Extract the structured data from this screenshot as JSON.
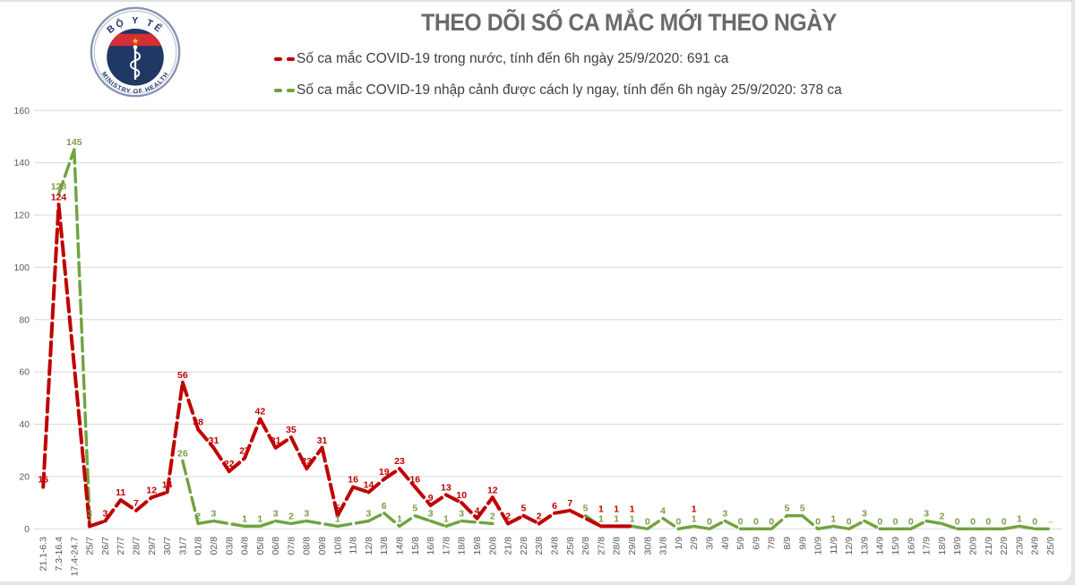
{
  "page": {
    "background": "#e6e6e6",
    "card_background": "#ffffff"
  },
  "logo": {
    "top_text": "BỘ Y TẾ",
    "bottom_text": "MINISTRY OF HEALTH",
    "ring_color": "#8a94b5",
    "navy": "#1f3864",
    "band_red": "#d62e33",
    "star_yellow": "#ffcf24",
    "text_color": "#1f3864"
  },
  "header": {
    "title": "THEO DÕI SỐ CA MẮC MỚI THEO NGÀY",
    "title_color": "#6a6a6a",
    "legend_text_color": "#3f3f3f",
    "legend": [
      {
        "id": "domestic",
        "label": "Số ca mắc COVID-19 trong nước, tính đến 6h ngày 25/9/2020: 691 ca",
        "color": "#c00000"
      },
      {
        "id": "imported",
        "label": "Số ca mắc COVID-19 nhập cảnh được cách ly ngay, tính đến 6h ngày 25/9/2020: 378 ca",
        "color": "#70a33f"
      }
    ]
  },
  "chart_data": {
    "type": "line",
    "title": "THEO DÕI SỐ CA MẮC MỚI THEO NGÀY",
    "xlabel": "",
    "ylabel": "",
    "ylim": [
      0,
      160
    ],
    "ytick_step": 20,
    "y_ticks": [
      0,
      20,
      40,
      60,
      80,
      100,
      120,
      140,
      160
    ],
    "grid": true,
    "legend_position": "top",
    "line_style": "dashed",
    "style": {
      "grid_color": "#d9d9d9",
      "axis_text_color": "#595959"
    },
    "categories": [
      "21.1-6.3",
      "7.3-16.4",
      "17.4-24.7",
      "25/7",
      "26/7",
      "27/7",
      "28/7",
      "29/7",
      "30/7",
      "31/7",
      "01/8",
      "02/8",
      "03/8",
      "04/8",
      "05/8",
      "06/8",
      "07/8",
      "08/8",
      "09/8",
      "10/8",
      "11/8",
      "12/8",
      "13/8",
      "14/8",
      "15/8",
      "16/8",
      "17/8",
      "18/8",
      "19/8",
      "20/8",
      "21/8",
      "22/8",
      "23/8",
      "24/8",
      "25/8",
      "26/8",
      "27/8",
      "28/8",
      "29/8",
      "30/8",
      "31/8",
      "1/9",
      "2/9",
      "3/9",
      "4/9",
      "5/9",
      "6/9",
      "7/9",
      "8/9",
      "9/9",
      "10/9",
      "11/9",
      "12/9",
      "13/9",
      "14/9",
      "15/9",
      "16/9",
      "17/9",
      "18/9",
      "19/9",
      "20/9",
      "21/9",
      "22/9",
      "23/9",
      "24/9",
      "25/9"
    ],
    "series": [
      {
        "id": "domestic",
        "name": "Số ca mắc COVID-19 trong nước",
        "total": 691,
        "color": "#c00000",
        "label_color": "#c00000",
        "values": [
          16,
          124,
          null,
          1,
          3,
          11,
          7,
          12,
          14,
          56,
          38,
          31,
          22,
          27,
          42,
          31,
          35,
          23,
          31,
          5,
          16,
          14,
          19,
          23,
          16,
          9,
          13,
          10,
          4,
          12,
          2,
          5,
          2,
          6,
          7,
          null,
          1,
          1,
          1,
          null,
          null,
          null,
          1,
          null,
          null,
          null,
          null,
          null,
          null,
          null,
          null,
          null,
          null,
          null,
          null,
          null,
          null,
          null,
          null,
          null,
          null,
          null,
          null,
          null,
          null,
          null
        ]
      },
      {
        "id": "imported",
        "name": "Số ca mắc COVID-19 nhập cảnh được cách ly ngay",
        "total": 378,
        "color": "#70a33f",
        "label_color": "#7d9b44",
        "values": [
          null,
          128,
          145,
          3,
          null,
          null,
          null,
          null,
          null,
          26,
          2,
          3,
          null,
          1,
          1,
          3,
          2,
          3,
          null,
          1,
          null,
          3,
          6,
          1,
          5,
          3,
          1,
          3,
          null,
          2,
          null,
          null,
          null,
          null,
          null,
          5,
          1,
          1,
          1,
          0,
          4,
          0,
          1,
          0,
          3,
          0,
          0,
          0,
          5,
          5,
          0,
          1,
          0,
          3,
          0,
          0,
          0,
          3,
          2,
          0,
          0,
          0,
          0,
          1,
          0,
          0
        ],
        "label_overrides": {
          "65": "–"
        },
        "override_color": "#b5bba8"
      }
    ]
  }
}
